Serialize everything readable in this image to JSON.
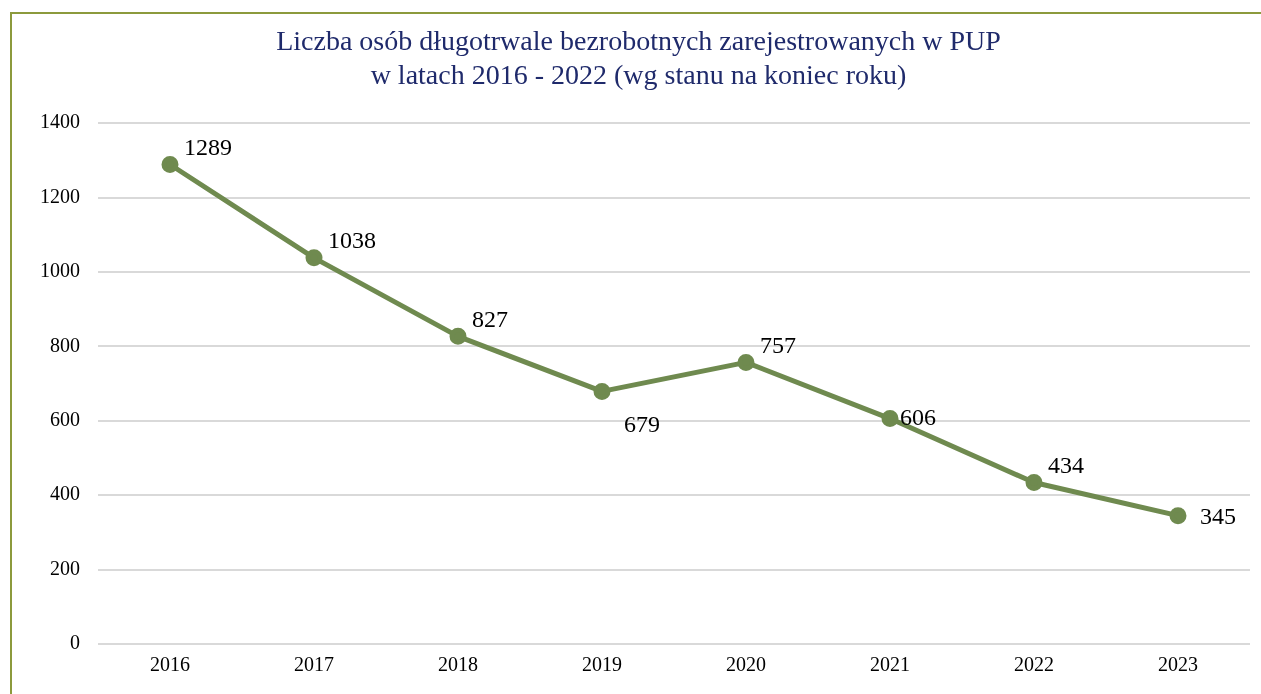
{
  "chart_data": {
    "type": "line",
    "title": [
      "Liczba osób długotrwale bezrobotnych zarejestrowanych w PUP",
      "w latach 2016 - 2022 (wg stanu na koniec roku)"
    ],
    "categories": [
      "2016",
      "2017",
      "2018",
      "2019",
      "2020",
      "2021",
      "2022",
      "2023"
    ],
    "series": [
      {
        "color": "#6f8a4f",
        "values": [
          1289,
          1038,
          827,
          679,
          757,
          606,
          434,
          345
        ]
      }
    ],
    "ylim": [
      0,
      1400
    ],
    "yticks": [
      0,
      200,
      400,
      600,
      800,
      1000,
      1200,
      1400
    ],
    "grid": "y",
    "legend": false,
    "marker": "circle",
    "line_style": "solid",
    "data_labels": true
  }
}
